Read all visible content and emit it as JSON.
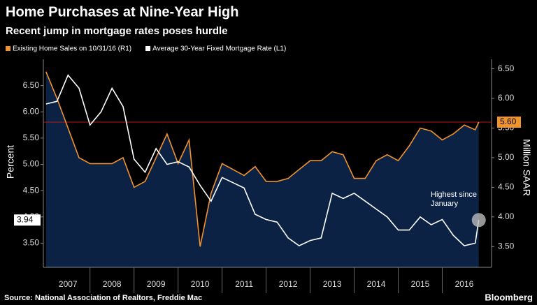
{
  "chart_data": {
    "type": "line-area",
    "title": "Home Purchases at Nine-Year High",
    "subtitle": "Recent jump in mortgage rates poses hurdle",
    "source": "Source: National Association of Realtors, Freddie Mac",
    "brand": "Bloomberg",
    "ylabel": "Percent",
    "y2label": "Million SAAR",
    "x": [
      2007.0,
      2007.25,
      2007.5,
      2007.75,
      2008.0,
      2008.25,
      2008.5,
      2008.75,
      2009.0,
      2009.25,
      2009.5,
      2009.75,
      2010.0,
      2010.25,
      2010.5,
      2010.75,
      2011.0,
      2011.25,
      2011.5,
      2011.75,
      2012.0,
      2012.25,
      2012.5,
      2012.75,
      2013.0,
      2013.25,
      2013.5,
      2013.75,
      2014.0,
      2014.25,
      2014.5,
      2014.75,
      2015.0,
      2015.25,
      2015.5,
      2015.75,
      2016.0,
      2016.25,
      2016.5,
      2016.75,
      2016.83
    ],
    "xlim": [
      2006.94,
      2017.12
    ],
    "xticks": [
      {
        "value": 2007.5,
        "label": "2007"
      },
      {
        "value": 2008.5,
        "label": "2008"
      },
      {
        "value": 2009.5,
        "label": "2009"
      },
      {
        "value": 2010.5,
        "label": "2010"
      },
      {
        "value": 2011.5,
        "label": "2011"
      },
      {
        "value": 2012.5,
        "label": "2012"
      },
      {
        "value": 2013.5,
        "label": "2013"
      },
      {
        "value": 2014.5,
        "label": "2014"
      },
      {
        "value": 2015.5,
        "label": "2015"
      },
      {
        "value": 2016.5,
        "label": "2016"
      }
    ],
    "ylim": [
      3.04,
      7.0
    ],
    "yticks": [
      {
        "value": 3.5,
        "label": "3.50"
      },
      {
        "value": 4,
        "label": "4.00"
      },
      {
        "value": 4.5,
        "label": "4.50"
      },
      {
        "value": 5,
        "label": "5.00"
      },
      {
        "value": 5.5,
        "label": "5.50"
      },
      {
        "value": 6,
        "label": "6.00"
      },
      {
        "value": 6.5,
        "label": "6.50"
      }
    ],
    "y2lim": [
      3.15,
      6.66
    ],
    "y2ticks": [
      {
        "value": 3.5,
        "label": "3.50"
      },
      {
        "value": 4,
        "label": "4.00"
      },
      {
        "value": 4.5,
        "label": "4.50"
      },
      {
        "value": 5,
        "label": "5.00"
      },
      {
        "value": 5.5,
        "label": "5.50"
      },
      {
        "value": 6,
        "label": "6.00"
      },
      {
        "value": 6.5,
        "label": "6.50"
      }
    ],
    "series": [
      {
        "name": "Existing Home Sales on 10/31/16 (R1)",
        "color": "#f0922e",
        "fill": "#0c2245",
        "axis": "y2",
        "values": [
          6.45,
          6.0,
          5.5,
          5.0,
          4.9,
          4.9,
          4.9,
          5.0,
          4.5,
          4.6,
          5.0,
          5.4,
          4.9,
          5.3,
          3.5,
          4.4,
          4.9,
          4.8,
          4.7,
          4.85,
          4.6,
          4.6,
          4.65,
          4.8,
          4.95,
          4.95,
          5.1,
          5.05,
          4.65,
          4.65,
          4.95,
          5.05,
          4.95,
          5.2,
          5.5,
          5.45,
          5.3,
          5.4,
          5.55,
          5.47,
          5.6
        ]
      },
      {
        "name": "Average 30-Year Fixed Mortgage Rate (L1)",
        "color": "#ffffff",
        "values": [
          6.15,
          6.2,
          6.7,
          6.45,
          5.75,
          6.0,
          6.45,
          6.1,
          5.1,
          4.85,
          5.3,
          5.0,
          5.05,
          4.95,
          4.6,
          4.3,
          4.75,
          4.65,
          4.55,
          4.05,
          3.95,
          3.9,
          3.6,
          3.45,
          3.55,
          3.6,
          4.45,
          4.35,
          4.45,
          4.3,
          4.15,
          4.0,
          3.75,
          3.75,
          4.0,
          3.85,
          3.95,
          3.65,
          3.45,
          3.5,
          3.94
        ]
      }
    ],
    "reference_line": {
      "value": 5.6,
      "label": "5.60",
      "axis": "y2",
      "color": "#b01c1c"
    },
    "annotation": [
      "Highest since",
      "January"
    ]
  }
}
